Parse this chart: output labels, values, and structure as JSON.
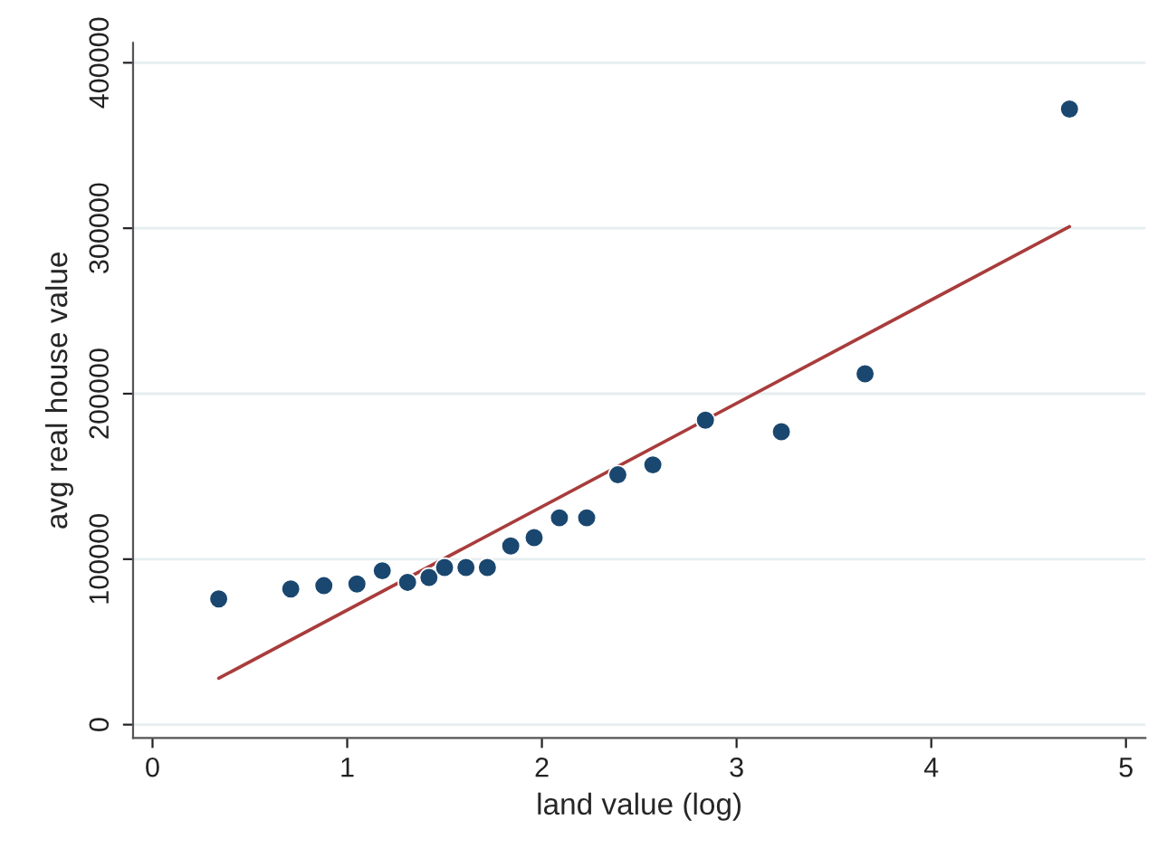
{
  "chart_data": {
    "type": "scatter",
    "xlabel": "land value (log)",
    "ylabel": "avg real house value",
    "xlim": [
      -0.1,
      5.1
    ],
    "ylim": [
      -8000,
      412000
    ],
    "xticks": [
      0,
      1,
      2,
      3,
      4,
      5
    ],
    "yticks": [
      0,
      100000,
      200000,
      300000,
      400000
    ],
    "grid": "y",
    "legend": false,
    "series": [
      {
        "marker": "circle",
        "color": "#1a476f",
        "x": [
          0.34,
          0.71,
          0.88,
          1.05,
          1.18,
          1.31,
          1.42,
          1.5,
          1.61,
          1.72,
          1.84,
          1.96,
          2.09,
          2.23,
          2.39,
          2.57,
          2.84,
          3.23,
          3.66,
          4.71
        ],
        "values": [
          76000,
          82000,
          84000,
          85000,
          93000,
          86000,
          89000,
          95000,
          95000,
          95000,
          108000,
          113000,
          125000,
          125000,
          151000,
          157000,
          184000,
          177000,
          212000,
          372000
        ]
      },
      {
        "type": "line",
        "marker": "none",
        "color": "#a93c3c",
        "line_style": "solid",
        "x": [
          0.34,
          4.71
        ],
        "values": [
          28000,
          301000
        ]
      }
    ]
  }
}
